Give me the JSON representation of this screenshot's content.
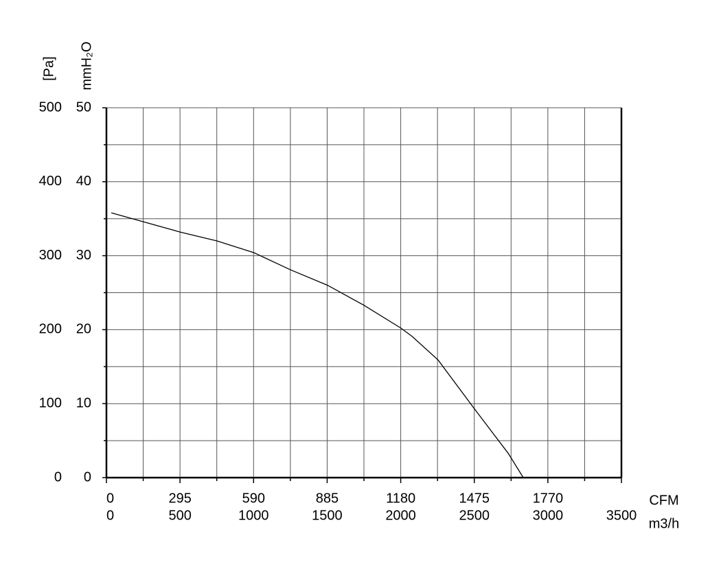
{
  "chart_data": {
    "type": "line",
    "y_label": "[Pa]",
    "y2_label": "mmH₂O",
    "x_label": "m3/h",
    "x2_label": "CFM",
    "x": [
      33,
      500,
      750,
      1003,
      1250,
      1503,
      1750,
      2002,
      2077,
      2254,
      2497,
      2730,
      2833
    ],
    "series": [
      {
        "color": "#000000",
        "values": [
          358,
          332,
          320,
          304,
          281,
          260,
          233,
          202,
          191,
          159,
          94,
          33,
          0
        ]
      }
    ],
    "xlim": [
      0,
      3500
    ],
    "xticks": [
      0,
      500,
      1000,
      1500,
      2000,
      2500,
      3000,
      3500
    ],
    "xminorticks": [
      250,
      750,
      1250,
      1750,
      2250,
      2750,
      3250
    ],
    "x2lim": [
      0,
      2065
    ],
    "x2ticks": [
      0,
      295,
      590,
      885,
      1180,
      1475,
      1770
    ],
    "ylim": [
      0,
      500
    ],
    "yticks": [
      0,
      100,
      200,
      300,
      400,
      500
    ],
    "yminorticks": [
      50,
      150,
      250,
      350,
      450
    ],
    "y2lim": [
      0,
      50
    ],
    "y2ticks": [
      0,
      10,
      20,
      30,
      40,
      50
    ],
    "grid": true
  }
}
